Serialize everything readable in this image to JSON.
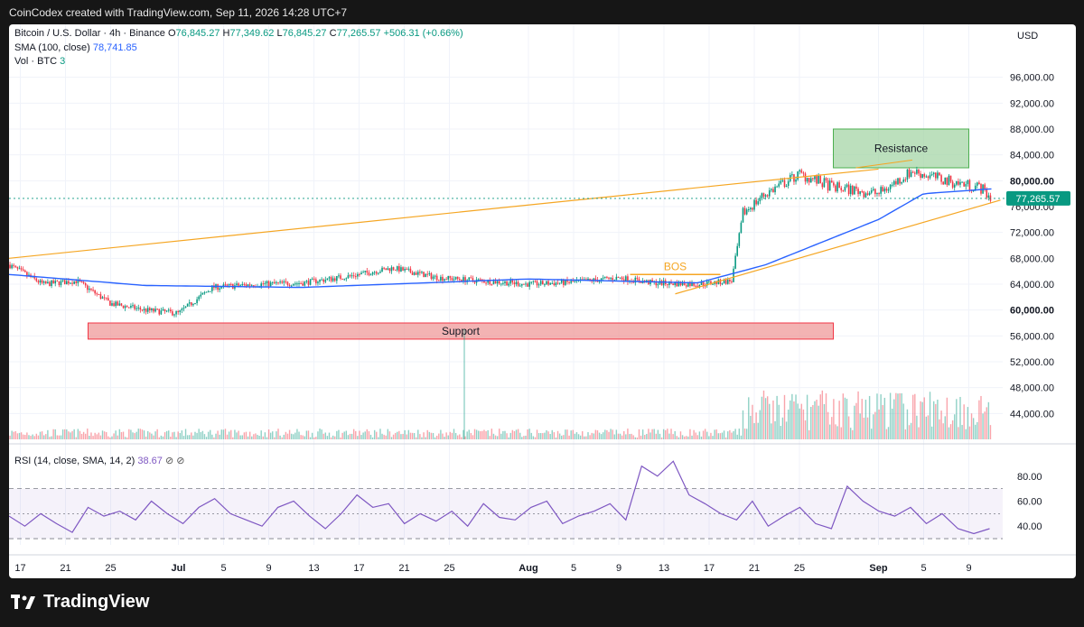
{
  "topbar": {
    "text": "CoinCodex created with TradingView.com, Sep 11, 2026 14:28 UTC+7"
  },
  "header": {
    "symbol": "Bitcoin / U.S. Dollar · 4h · Binance",
    "o_label": "O",
    "o_val": "76,845.27",
    "h_label": "H",
    "h_val": "77,349.62",
    "l_label": "L",
    "l_val": "76,845.27",
    "c_label": "C",
    "c_val": "77,265.57",
    "change": "+506.31 (+0.66%)",
    "sma_label": "SMA (100, close)",
    "sma_val": "78,741.85",
    "vol_label": "Vol · BTC",
    "vol_val": "3"
  },
  "rsi_header": {
    "label": "RSI (14, close, SMA, 14, 2)",
    "val": "38.67",
    "icons": "⊘ ⊘"
  },
  "currency": "USD",
  "last_price_tag": "77,265.57",
  "brand": "TradingView",
  "annotations": {
    "resistance": "Resistance",
    "support": "Support",
    "bos": "BOS"
  },
  "colors": {
    "up": "#089981",
    "down": "#f23645",
    "sma": "#2962ff",
    "trend": "#f5a623",
    "rsi": "#7e57c2",
    "resistance_fill": "#a5d6a7",
    "support_fill": "#ef9a9a"
  },
  "chart_data": [
    {
      "type": "candlestick",
      "title": "",
      "ylabel": "USD",
      "ylim": [
        40000,
        100000
      ],
      "y_ticks": [
        "44,000.00",
        "48,000.00",
        "52,000.00",
        "56,000.00",
        "60,000.00",
        "64,000.00",
        "68,000.00",
        "72,000.00",
        "76,000.00",
        "80,000.00",
        "84,000.00",
        "88,000.00",
        "92,000.00",
        "96,000.00"
      ],
      "x_ticks": [
        "17",
        "21",
        "25",
        "Jul",
        "5",
        "9",
        "13",
        "17",
        "21",
        "25",
        "Aug",
        "5",
        "9",
        "13",
        "17",
        "21",
        "25",
        "Sep",
        "5",
        "9"
      ],
      "x_range": [
        "Jun 16",
        "Sep 12"
      ],
      "series": [
        {
          "name": "Bitcoin / U.S. Dollar",
          "x": [
            "Jun 16",
            "Jun 19",
            "Jun 22",
            "Jun 25",
            "Jun 28",
            "Jul 1",
            "Jul 4",
            "Jul 8",
            "Jul 12",
            "Jul 16",
            "Jul 20",
            "Jul 24",
            "Jul 28",
            "Aug 1",
            "Aug 5",
            "Aug 9",
            "Aug 12",
            "Aug 16",
            "Aug 19",
            "Aug 20",
            "Aug 22",
            "Aug 25",
            "Aug 28",
            "Sep 1",
            "Sep 4",
            "Sep 7",
            "Sep 10",
            "Sep 11"
          ],
          "values": [
            67000,
            64000,
            64500,
            61000,
            60000,
            59500,
            63500,
            64000,
            64200,
            65200,
            66500,
            65000,
            64500,
            64000,
            64300,
            65000,
            64200,
            64000,
            64500,
            75000,
            78000,
            81000,
            79000,
            78000,
            81500,
            80000,
            79000,
            77265
          ]
        },
        {
          "name": "SMA (100, close)",
          "x": [
            "Jun 16",
            "Jun 28",
            "Jul 12",
            "Aug 1",
            "Aug 16",
            "Aug 22",
            "Sep 1",
            "Sep 5",
            "Sep 11"
          ],
          "values": [
            65500,
            63800,
            63500,
            64800,
            64200,
            67000,
            74000,
            78000,
            78741
          ]
        }
      ],
      "annotations": [
        {
          "label": "Resistance",
          "y_range": [
            82000,
            88000
          ],
          "x_range": [
            "Aug 28",
            "Sep 9"
          ]
        },
        {
          "label": "Support",
          "y_range": [
            55500,
            58000
          ],
          "x_range": [
            "Jun 23",
            "Aug 28"
          ]
        },
        {
          "label": "BOS",
          "y": 65500,
          "x_range": [
            "Aug 10",
            "Aug 18"
          ]
        }
      ]
    },
    {
      "type": "line",
      "title": "RSI (14, close, SMA, 14, 2)",
      "ylim": [
        25,
        95
      ],
      "y_ticks": [
        "40.00",
        "60.00",
        "80.00"
      ],
      "bands": [
        30,
        50,
        70
      ],
      "series": [
        {
          "name": "RSI",
          "values": [
            48,
            40,
            50,
            42,
            35,
            55,
            48,
            52,
            45,
            60,
            50,
            42,
            55,
            62,
            50,
            45,
            40,
            55,
            60,
            48,
            38,
            50,
            65,
            55,
            58,
            42,
            50,
            44,
            52,
            40,
            58,
            47,
            45,
            55,
            60,
            42,
            48,
            52,
            58,
            45,
            88,
            80,
            92,
            65,
            58,
            50,
            45,
            60,
            40,
            48,
            55,
            42,
            38,
            72,
            60,
            52,
            48,
            55,
            42,
            50,
            38,
            34,
            38
          ]
        }
      ]
    }
  ]
}
